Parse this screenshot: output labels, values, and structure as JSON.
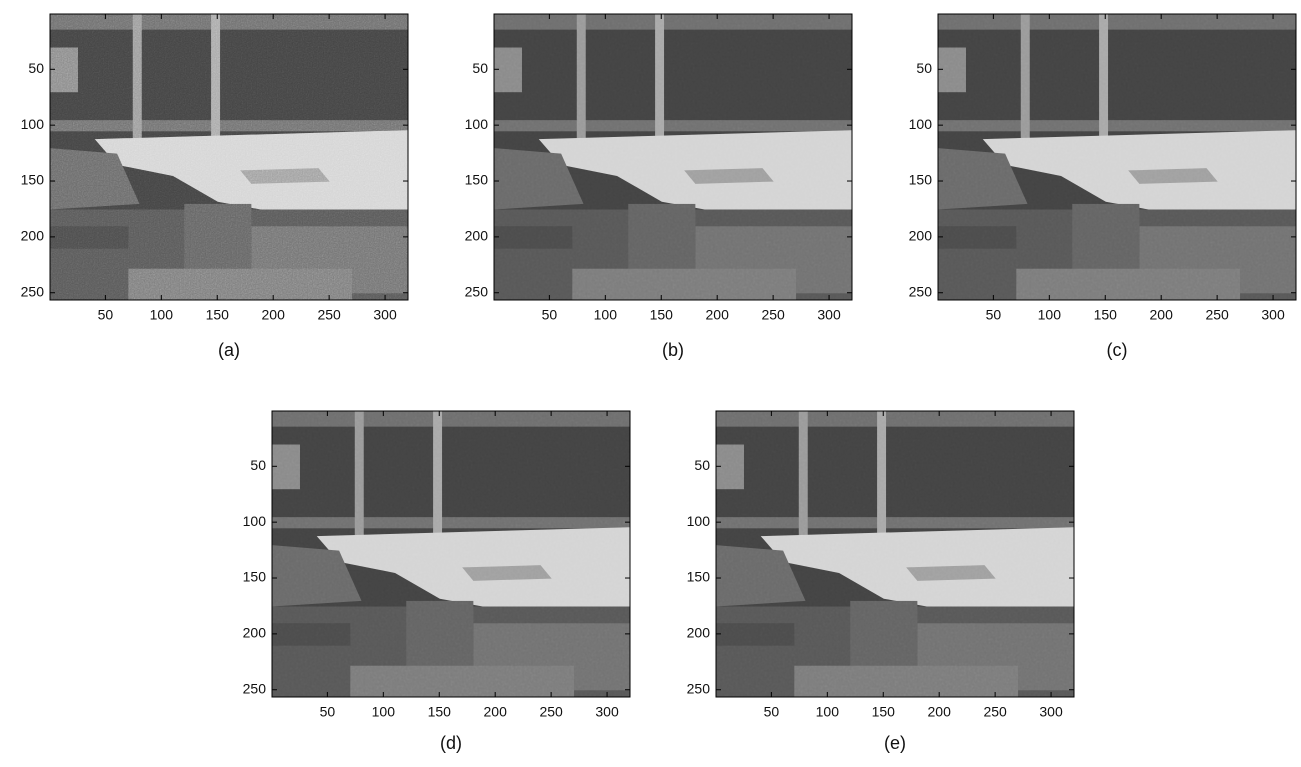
{
  "chart_data": [
    {
      "type": "image",
      "caption": "(a)",
      "noisy": true,
      "xlim": [
        0.5,
        320.5
      ],
      "ylim": [
        256.5,
        0.5
      ],
      "xticks": [
        50,
        100,
        150,
        200,
        250,
        300
      ],
      "yticks": [
        50,
        100,
        150,
        200,
        250
      ]
    },
    {
      "type": "image",
      "caption": "(b)",
      "noisy": false,
      "xlim": [
        0.5,
        320.5
      ],
      "ylim": [
        256.5,
        0.5
      ],
      "xticks": [
        50,
        100,
        150,
        200,
        250,
        300
      ],
      "yticks": [
        50,
        100,
        150,
        200,
        250
      ]
    },
    {
      "type": "image",
      "caption": "(c)",
      "noisy": false,
      "xlim": [
        0.5,
        320.5
      ],
      "ylim": [
        256.5,
        0.5
      ],
      "xticks": [
        50,
        100,
        150,
        200,
        250,
        300
      ],
      "yticks": [
        50,
        100,
        150,
        200,
        250
      ]
    },
    {
      "type": "image",
      "caption": "(d)",
      "noisy": false,
      "xlim": [
        0.5,
        320.5
      ],
      "ylim": [
        256.5,
        0.5
      ],
      "xticks": [
        50,
        100,
        150,
        200,
        250,
        300
      ],
      "yticks": [
        50,
        100,
        150,
        200,
        250
      ]
    },
    {
      "type": "image",
      "caption": "(e)",
      "noisy": false,
      "xlim": [
        0.5,
        320.5
      ],
      "ylim": [
        256.5,
        0.5
      ],
      "xticks": [
        50,
        100,
        150,
        200,
        250,
        300
      ],
      "yticks": [
        50,
        100,
        150,
        200,
        250
      ]
    }
  ]
}
